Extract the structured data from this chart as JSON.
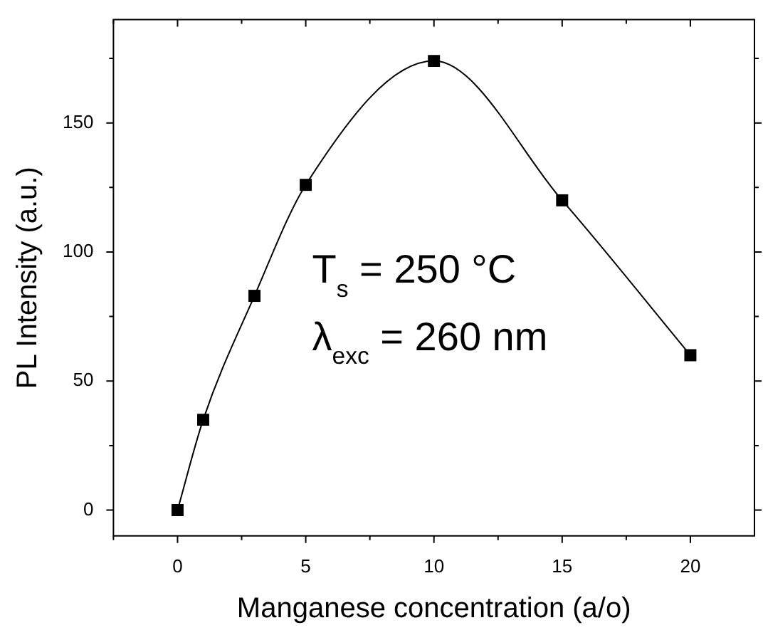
{
  "chart_data": {
    "type": "line",
    "xlabel": "Manganese concentration (a/o)",
    "ylabel": "PL Intensity (a.u.)",
    "x": [
      0,
      1,
      3,
      5,
      10,
      15,
      20
    ],
    "series": [
      {
        "color": "#000000",
        "values": [
          0,
          35,
          83,
          126,
          174,
          120,
          60
        ]
      }
    ],
    "xlim": [
      -2.5,
      22.5
    ],
    "xticks": [
      {
        "value": -2.5,
        "label": null
      },
      0,
      {
        "value": 2.5,
        "label": null
      },
      5,
      {
        "value": 7.5,
        "label": null
      },
      10,
      {
        "value": 12.5,
        "label": null
      },
      15,
      {
        "value": 17.5,
        "label": null
      },
      20
    ],
    "ylim": [
      -10,
      190
    ],
    "yticks": [
      0,
      {
        "value": 25,
        "label": null
      },
      50,
      {
        "value": 75,
        "label": null
      },
      100,
      {
        "value": 125,
        "label": null
      },
      150,
      {
        "value": 175,
        "label": null
      }
    ],
    "annotations": [
      "T$_{s}$ = 250 °C",
      "λ$_{exc}$ = 260 nm"
    ],
    "marker": "square",
    "line_style": "solid",
    "grid": false,
    "legend": false
  }
}
